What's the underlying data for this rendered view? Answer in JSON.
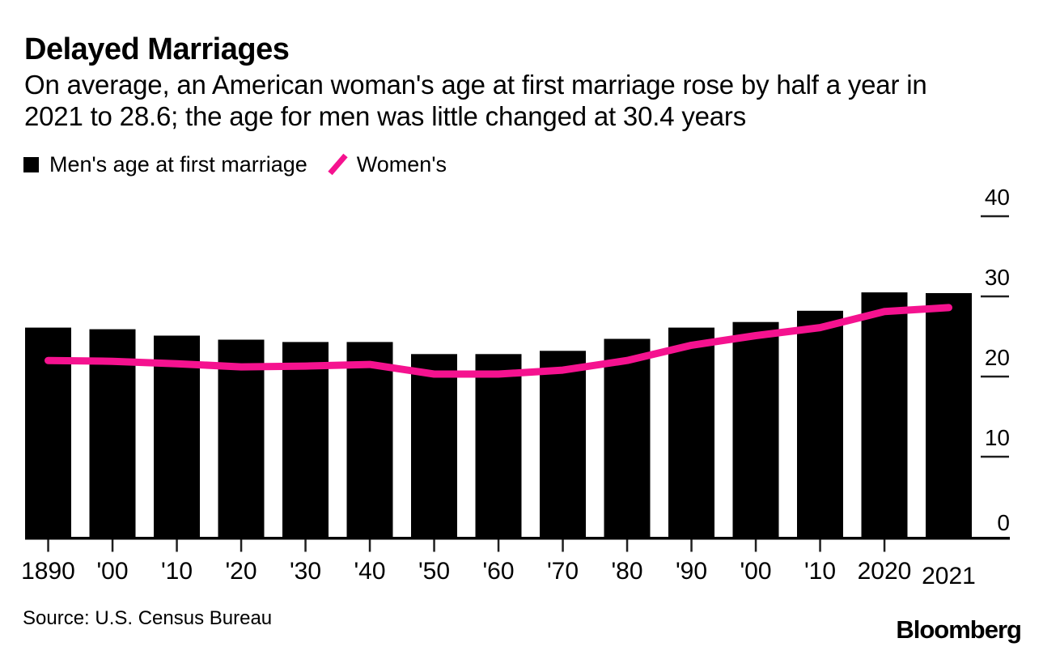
{
  "header": {
    "title": "Delayed Marriages",
    "subtitle_lines": [
      "On average, an American woman's age at first marriage rose by half a year in",
      "2021 to 28.6; the age for men was little changed at 30.4 years"
    ]
  },
  "legend": {
    "men_label": "Men's age at first marriage",
    "women_label": "Women's"
  },
  "footer": {
    "source": "Source: U.S. Census Bureau",
    "brand": "Bloomberg"
  },
  "colors": {
    "bar": "#000000",
    "line": "#F5128F",
    "axis": "#000000",
    "tick": "#1f1f1f"
  },
  "chart_data": {
    "type": "bar+line",
    "title": "Delayed Marriages",
    "categories": [
      "1890",
      "1900",
      "1910",
      "1920",
      "1930",
      "1940",
      "1950",
      "1960",
      "1970",
      "1980",
      "1990",
      "2000",
      "2010",
      "2020",
      "2021"
    ],
    "x_axis": [
      {
        "label": "1890",
        "tick": true,
        "dy": 0
      },
      {
        "label": "'00",
        "tick": true,
        "dy": 0
      },
      {
        "label": "'10",
        "tick": true,
        "dy": 0
      },
      {
        "label": "'20",
        "tick": true,
        "dy": 0
      },
      {
        "label": "'30",
        "tick": true,
        "dy": 0
      },
      {
        "label": "'40",
        "tick": true,
        "dy": 0
      },
      {
        "label": "'50",
        "tick": true,
        "dy": 0
      },
      {
        "label": "'60",
        "tick": true,
        "dy": 0
      },
      {
        "label": "'70",
        "tick": true,
        "dy": 0
      },
      {
        "label": "'80",
        "tick": true,
        "dy": 0
      },
      {
        "label": "'90",
        "tick": true,
        "dy": 0
      },
      {
        "label": "'00",
        "tick": true,
        "dy": 0
      },
      {
        "label": "'10",
        "tick": true,
        "dy": 0
      },
      {
        "label": "2020",
        "tick": true,
        "dy": 0
      },
      {
        "label": "2021",
        "tick": false,
        "dy": 6
      }
    ],
    "series": [
      {
        "name": "Men's age at first marriage",
        "type": "bar",
        "color": "#000000",
        "values": [
          26.1,
          25.9,
          25.1,
          24.6,
          24.3,
          24.3,
          22.8,
          22.8,
          23.2,
          24.7,
          26.1,
          26.8,
          28.2,
          30.5,
          30.4
        ]
      },
      {
        "name": "Women's",
        "type": "line",
        "color": "#F5128F",
        "values": [
          22.0,
          21.9,
          21.6,
          21.2,
          21.3,
          21.5,
          20.3,
          20.3,
          20.8,
          22.0,
          23.9,
          25.1,
          26.1,
          28.1,
          28.6
        ]
      }
    ],
    "ylim": [
      0,
      40
    ],
    "y_ticks": [
      0,
      10,
      20,
      30,
      40
    ],
    "y_axis_side": "right",
    "grid": false,
    "legend_position": "top-left"
  }
}
